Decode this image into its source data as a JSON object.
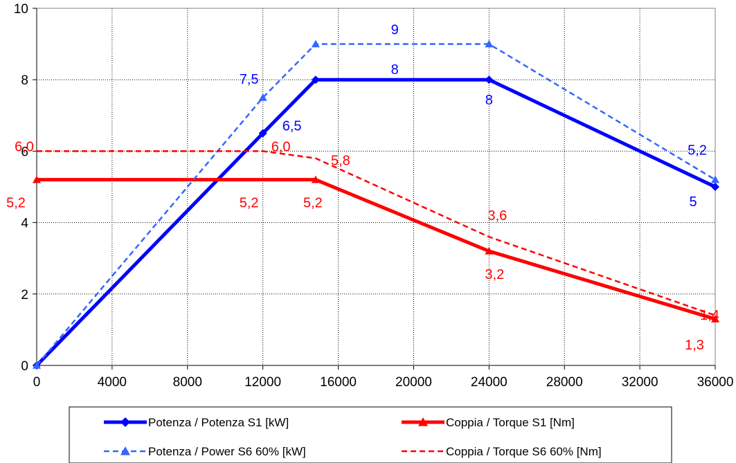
{
  "chart_data": {
    "type": "line",
    "xlim": [
      0,
      36000
    ],
    "ylim": [
      0,
      10
    ],
    "x_ticks": [
      "0",
      "4000",
      "8000",
      "12000",
      "16000",
      "20000",
      "24000",
      "28000",
      "32000",
      "36000"
    ],
    "y_ticks": [
      "0",
      "2",
      "4",
      "6",
      "8",
      "10"
    ],
    "grid": true,
    "legend_position": "bottom",
    "series": [
      {
        "name": "Potenza / Potenza S1 [kW]",
        "color": "#0000FF",
        "style": "solid-thick",
        "marker": "diamond",
        "points": [
          [
            0,
            0
          ],
          [
            12000,
            6.5
          ],
          [
            14800,
            8
          ],
          [
            24000,
            8
          ],
          [
            36000,
            5
          ]
        ],
        "labels": [
          {
            "text": "6,5",
            "x": 12000,
            "y": 6.5
          },
          {
            "text": "8",
            "x": 19000,
            "y": 8
          },
          {
            "text": "8",
            "x": 24000,
            "y": 8
          },
          {
            "text": "5",
            "x": 36000,
            "y": 5
          }
        ]
      },
      {
        "name": "Coppia / Torque S1 [Nm]",
        "color": "#FF0000",
        "style": "solid-thick",
        "marker": "triangle",
        "points": [
          [
            0,
            5.2
          ],
          [
            14800,
            5.2
          ],
          [
            24000,
            3.2
          ],
          [
            36000,
            1.3
          ]
        ],
        "labels": [
          {
            "text": "5,2",
            "x": 0,
            "y": 5.2
          },
          {
            "text": "5,2",
            "x": 12000,
            "y": 5.2
          },
          {
            "text": "5,2",
            "x": 14800,
            "y": 5.2
          },
          {
            "text": "3,2",
            "x": 24000,
            "y": 3.2
          },
          {
            "text": "1,3",
            "x": 36000,
            "y": 1.3
          }
        ]
      },
      {
        "name": "Potenza / Power S6 60% [kW]",
        "color": "#3366FF",
        "style": "dashed",
        "marker": "triangle",
        "points": [
          [
            0,
            0
          ],
          [
            12000,
            7.5
          ],
          [
            14800,
            9
          ],
          [
            24000,
            9
          ],
          [
            36000,
            5.2
          ]
        ],
        "labels": [
          {
            "text": "7,5",
            "x": 12000,
            "y": 7.5
          },
          {
            "text": "9",
            "x": 19000,
            "y": 9
          },
          {
            "text": "5,2",
            "x": 36000,
            "y": 5.2
          }
        ]
      },
      {
        "name": "Coppia / Torque S6 60% [Nm]",
        "color": "#FF0000",
        "style": "dashed",
        "marker": "none",
        "points": [
          [
            0,
            6.0
          ],
          [
            12000,
            6.0
          ],
          [
            14800,
            5.8
          ],
          [
            24000,
            3.6
          ],
          [
            36000,
            1.4
          ]
        ],
        "labels": [
          {
            "text": "6,0",
            "x": 0,
            "y": 6.0
          },
          {
            "text": "6,0",
            "x": 12000,
            "y": 6.0
          },
          {
            "text": "5,8",
            "x": 14800,
            "y": 5.8
          },
          {
            "text": "3,6",
            "x": 24000,
            "y": 3.6
          },
          {
            "text": "1,4",
            "x": 36000,
            "y": 1.4
          }
        ]
      }
    ]
  }
}
